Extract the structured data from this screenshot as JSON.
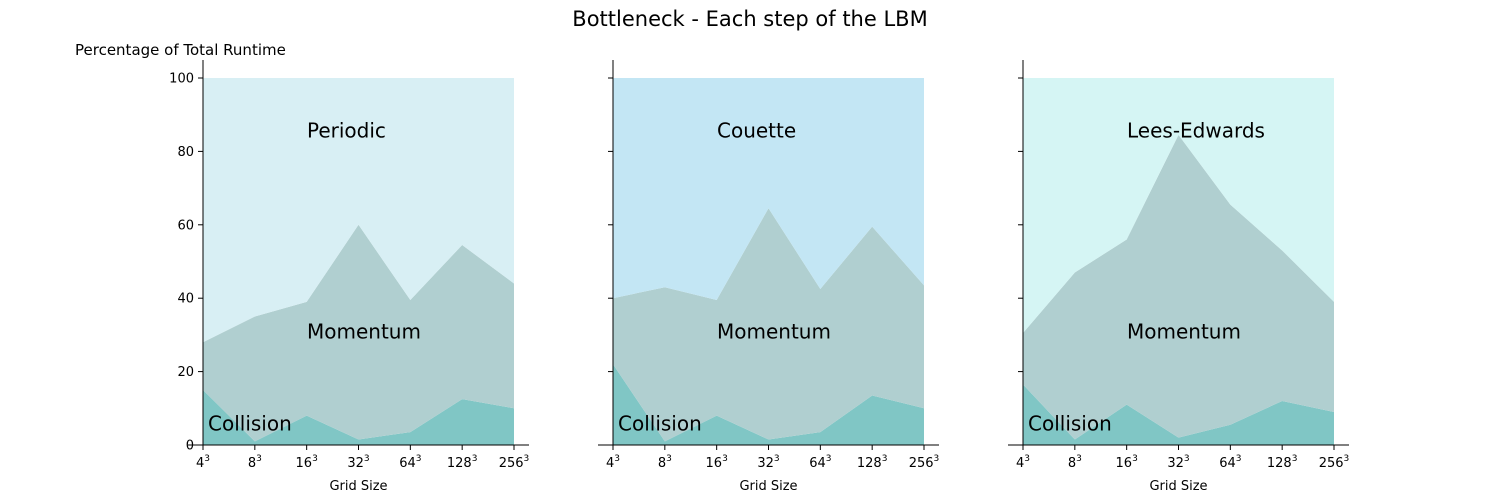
{
  "chart_data": {
    "type": "area",
    "title": "Bottleneck - Each step of the LBM",
    "ylabel": "Percentage of Total Runtime",
    "xlabel": "Grid Size",
    "ylim": [
      0,
      100
    ],
    "yticks": [
      0,
      20,
      40,
      60,
      80,
      100
    ],
    "categories": [
      {
        "base": "4",
        "exp": "3"
      },
      {
        "base": "8",
        "exp": "3"
      },
      {
        "base": "16",
        "exp": "3"
      },
      {
        "base": "32",
        "exp": "3"
      },
      {
        "base": "64",
        "exp": "3"
      },
      {
        "base": "128",
        "exp": "3"
      },
      {
        "base": "256",
        "exp": "3"
      }
    ],
    "stacked": true,
    "panels": [
      {
        "series": [
          {
            "name": "Collision",
            "color": "#80c6c5",
            "values": [
              15,
              1,
              8,
              1.5,
              3.5,
              12.5,
              10
            ]
          },
          {
            "name": "Momentum",
            "color": "#b0cfd0",
            "values": [
              13,
              34,
              31,
              58.5,
              36,
              42,
              34
            ]
          },
          {
            "name": "Periodic",
            "color": "#d8eff4",
            "values": [
              72,
              65,
              61,
              40,
              60.5,
              45.5,
              56
            ]
          }
        ]
      },
      {
        "series": [
          {
            "name": "Collision",
            "color": "#80c6c5",
            "values": [
              22,
              1,
              8,
              1.5,
              3.5,
              13.5,
              10
            ]
          },
          {
            "name": "Momentum",
            "color": "#b0cfd0",
            "values": [
              18,
              42,
              31.5,
              63,
              39,
              46,
              33.5
            ]
          },
          {
            "name": "Couette",
            "color": "#c3e6f4",
            "values": [
              60,
              57,
              60.5,
              35.5,
              57.5,
              40.5,
              56.5
            ]
          }
        ]
      },
      {
        "series": [
          {
            "name": "Collision",
            "color": "#80c6c5",
            "values": [
              16.5,
              1.5,
              11,
              2,
              5.5,
              12,
              9
            ]
          },
          {
            "name": "Momentum",
            "color": "#b0cfd0",
            "values": [
              14,
              45.5,
              45,
              82.5,
              60,
              41,
              30
            ]
          },
          {
            "name": "Lees-Edwards",
            "color": "#d5f5f4",
            "values": [
              69.5,
              53,
              44,
              15.5,
              34.5,
              47,
              61
            ]
          }
        ]
      }
    ]
  }
}
